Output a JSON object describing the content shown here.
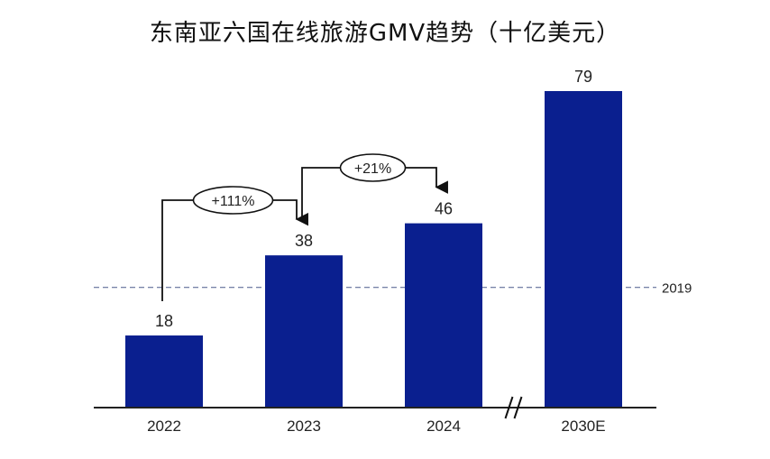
{
  "title": "东南亚六国在线旅游GMV趋势（十亿美元）",
  "chart_data": {
    "type": "bar",
    "title": "东南亚六国在线旅游GMV趋势（十亿美元）",
    "categories": [
      "2022",
      "2023",
      "2024",
      "2030E"
    ],
    "values": [
      18,
      38,
      46,
      79
    ],
    "data_labels": [
      "18",
      "38",
      "46",
      "79"
    ],
    "reference_line": {
      "value": 30,
      "label": "2019"
    },
    "growth_annotations": [
      {
        "from": "2022",
        "to": "2023",
        "label": "+111%"
      },
      {
        "from": "2023",
        "to": "2024",
        "label": "+21%"
      }
    ],
    "axis_break_between": [
      "2024",
      "2030E"
    ],
    "bar_color": "#0a1f8f",
    "reference_line_color": "#4a5a8a",
    "ylim": [
      0,
      79
    ],
    "xlabel": "",
    "ylabel": "",
    "grid": false,
    "legend": "none"
  }
}
